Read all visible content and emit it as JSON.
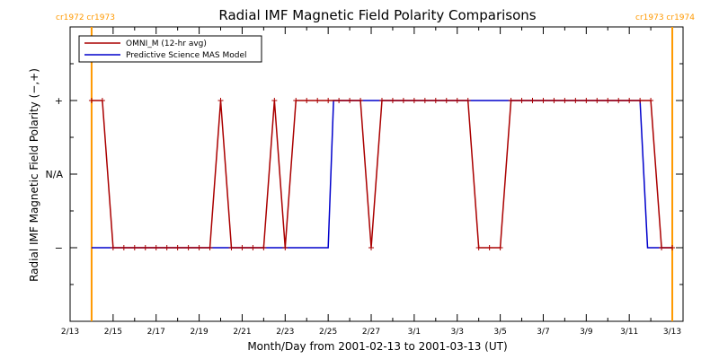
{
  "chart_data": {
    "type": "line",
    "title": "Radial IMF Magnetic Field Polarity Comparisons",
    "xlabel": "Month/Day from 2001-02-13 to 2001-03-13 (UT)",
    "ylabel": "Radial IMF Magnetic Field Polarity (−,+)",
    "x_tick_labels": [
      "2/13",
      "2/15",
      "2/17",
      "2/19",
      "2/21",
      "2/23",
      "2/25",
      "2/27",
      "3/1",
      "3/3",
      "3/5",
      "3/7",
      "3/9",
      "3/11",
      "3/13"
    ],
    "x_tick_days": [
      0,
      2,
      4,
      6,
      8,
      10,
      12,
      14,
      16,
      18,
      20,
      22,
      24,
      26,
      28
    ],
    "xlim_days": [
      0,
      28.5
    ],
    "y_tick_labels": [
      {
        "label": "+",
        "value": 1
      },
      {
        "label": "N/A",
        "value": 0
      },
      {
        "label": "−",
        "value": -1
      }
    ],
    "ylim": [
      -2,
      2
    ],
    "carrington_markers": [
      {
        "day": 1.0,
        "label": "cr1972 cr1973",
        "side": "left"
      },
      {
        "day": 28.0,
        "label": "cr1973 cr1974",
        "side": "right"
      }
    ],
    "marker_color": "#ff9900",
    "series": [
      {
        "name": "OMNI_M (12-hr avg)",
        "color": "#aa0000",
        "markers": true,
        "x": [
          1.0,
          1.5,
          2.0,
          2.5,
          3.0,
          3.5,
          4.0,
          4.5,
          5.0,
          5.5,
          6.0,
          6.5,
          7.0,
          7.5,
          8.0,
          8.5,
          9.0,
          9.5,
          10.0,
          10.5,
          11.0,
          11.5,
          12.0,
          12.5,
          13.0,
          13.5,
          14.0,
          14.5,
          15.0,
          15.5,
          16.0,
          16.5,
          17.0,
          17.5,
          18.0,
          18.5,
          19.0,
          19.5,
          20.0,
          20.5,
          21.0,
          21.5,
          22.0,
          22.5,
          23.0,
          23.5,
          24.0,
          24.5,
          25.0,
          25.5,
          26.0,
          26.5,
          27.0,
          27.5,
          28.0
        ],
        "y": [
          1,
          1,
          -1,
          -1,
          -1,
          -1,
          -1,
          -1,
          -1,
          -1,
          -1,
          -1,
          1,
          -1,
          -1,
          -1,
          -1,
          1,
          -1,
          1,
          1,
          1,
          1,
          1,
          1,
          1,
          -1,
          1,
          1,
          1,
          1,
          1,
          1,
          1,
          1,
          1,
          -1,
          -1,
          -1,
          1,
          1,
          1,
          1,
          1,
          1,
          1,
          1,
          1,
          1,
          1,
          1,
          1,
          1,
          -1,
          -1
        ]
      },
      {
        "name": "Predictive Science MAS Model",
        "color": "#0000cc",
        "markers": false,
        "x": [
          1.0,
          12.0,
          12.25,
          26.5,
          26.85,
          28.0
        ],
        "y": [
          -1,
          -1,
          1,
          1,
          -1,
          -1
        ]
      }
    ],
    "legend_position": "top-left",
    "grid": false
  }
}
